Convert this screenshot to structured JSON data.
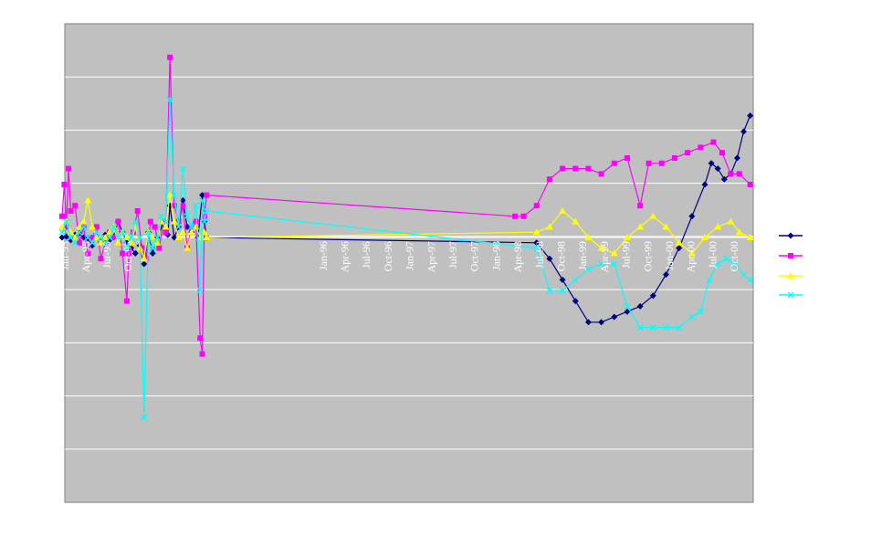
{
  "chart_data": {
    "type": "line",
    "title": "",
    "xlabel": "",
    "ylabel": "",
    "grid": true,
    "legend_position": "right",
    "plot_background": "#c0c0c0",
    "gridline_color": "#ffffff",
    "y_tick_count": 9,
    "x_tick_labels": [
      "Jan-95",
      "Apr-95",
      "Jul-95",
      "Oct-95",
      "Jan-96",
      "Apr-96",
      "Jul-96",
      "Oct-96",
      "Jan-97",
      "Apr-97",
      "Jul-97",
      "Oct-97",
      "Jan-98",
      "Apr-98",
      "Jul-98",
      "Oct-98",
      "Jan-99",
      "Apr-99",
      "Jul-99",
      "Oct-99",
      "Jan-00",
      "Apr-00",
      "Jul-00",
      "Oct-00"
    ],
    "x_tick_label_note": "The left-hand tick labels are crowded and overprinted; labels to the right of Jan-96 are legible.",
    "series": [
      {
        "color": "#000080",
        "marker": "diamond",
        "points": [
          [
            0,
            0.0
          ],
          [
            2,
            0.02
          ],
          [
            4,
            -0.05
          ],
          [
            6,
            0.05
          ],
          [
            8,
            0.08
          ],
          [
            10,
            0.0
          ],
          [
            12,
            -0.02
          ],
          [
            14,
            -0.15
          ],
          [
            16,
            0.05
          ],
          [
            18,
            -0.08
          ],
          [
            20,
            0.05
          ],
          [
            22,
            -0.05
          ],
          [
            24,
            0.02
          ],
          [
            26,
            0.3
          ],
          [
            28,
            0.1
          ],
          [
            30,
            -0.1
          ],
          [
            32,
            -0.2
          ],
          [
            34,
            -0.3
          ],
          [
            36,
            -0.15
          ],
          [
            38,
            -0.5
          ],
          [
            40,
            0.1
          ],
          [
            42,
            -0.3
          ],
          [
            44,
            0.0
          ],
          [
            46,
            0.2
          ],
          [
            48,
            0.15
          ],
          [
            49,
            0.05
          ],
          [
            50,
            0.6
          ],
          [
            52,
            0.0
          ],
          [
            54,
            0.2
          ],
          [
            56,
            0.7
          ],
          [
            58,
            0.2
          ],
          [
            60,
            0.1
          ],
          [
            62,
            0.3
          ],
          [
            63,
            0.0
          ],
          [
            65,
            0.8
          ],
          [
            66,
            0.3
          ],
          [
            67,
            0.0
          ],
          [
            220,
            -0.1
          ],
          [
            226,
            -0.4
          ],
          [
            232,
            -0.8
          ],
          [
            238,
            -1.2
          ],
          [
            244,
            -1.6
          ],
          [
            250,
            -1.6
          ],
          [
            256,
            -1.5
          ],
          [
            262,
            -1.4
          ],
          [
            268,
            -1.3
          ],
          [
            274,
            -1.1
          ],
          [
            280,
            -0.7
          ],
          [
            286,
            -0.2
          ],
          [
            292,
            0.4
          ],
          [
            298,
            1.0
          ],
          [
            301,
            1.4
          ],
          [
            304,
            1.3
          ],
          [
            307,
            1.1
          ],
          [
            310,
            1.2
          ],
          [
            313,
            1.5
          ],
          [
            316,
            2.0
          ],
          [
            319,
            2.3
          ]
        ]
      },
      {
        "color": "#ff00ff",
        "marker": "square",
        "points": [
          [
            0,
            0.4
          ],
          [
            1,
            1.0
          ],
          [
            2,
            0.2
          ],
          [
            3,
            1.3
          ],
          [
            4,
            0.5
          ],
          [
            6,
            0.6
          ],
          [
            8,
            -0.1
          ],
          [
            10,
            0.2
          ],
          [
            12,
            -0.3
          ],
          [
            14,
            0.0
          ],
          [
            16,
            0.2
          ],
          [
            18,
            -0.4
          ],
          [
            20,
            -0.1
          ],
          [
            22,
            0.1
          ],
          [
            24,
            0.0
          ],
          [
            26,
            0.3
          ],
          [
            28,
            -0.3
          ],
          [
            30,
            -1.2
          ],
          [
            31,
            -0.3
          ],
          [
            33,
            0.1
          ],
          [
            35,
            0.5
          ],
          [
            37,
            -0.2
          ],
          [
            39,
            -0.4
          ],
          [
            41,
            0.3
          ],
          [
            43,
            0.2
          ],
          [
            45,
            -0.2
          ],
          [
            47,
            0.3
          ],
          [
            48,
            0.1
          ],
          [
            50,
            3.4
          ],
          [
            52,
            0.6
          ],
          [
            54,
            0.3
          ],
          [
            56,
            0.6
          ],
          [
            58,
            -0.2
          ],
          [
            60,
            0.2
          ],
          [
            62,
            0.3
          ],
          [
            64,
            -1.9
          ],
          [
            65,
            -2.2
          ],
          [
            66,
            0.4
          ],
          [
            67,
            0.8
          ],
          [
            210,
            0.4
          ],
          [
            214,
            0.4
          ],
          [
            220,
            0.6
          ],
          [
            226,
            1.1
          ],
          [
            232,
            1.3
          ],
          [
            238,
            1.3
          ],
          [
            244,
            1.3
          ],
          [
            250,
            1.2
          ],
          [
            256,
            1.4
          ],
          [
            262,
            1.5
          ],
          [
            268,
            0.6
          ],
          [
            272,
            1.4
          ],
          [
            278,
            1.4
          ],
          [
            284,
            1.5
          ],
          [
            290,
            1.6
          ],
          [
            296,
            1.7
          ],
          [
            302,
            1.8
          ],
          [
            306,
            1.6
          ],
          [
            310,
            1.2
          ],
          [
            314,
            1.2
          ],
          [
            319,
            1.0
          ]
        ]
      },
      {
        "color": "#ffff00",
        "marker": "triangle",
        "points": [
          [
            0,
            0.2
          ],
          [
            2,
            0.3
          ],
          [
            4,
            0.1
          ],
          [
            6,
            0.0
          ],
          [
            8,
            0.2
          ],
          [
            10,
            0.3
          ],
          [
            12,
            0.7
          ],
          [
            14,
            0.2
          ],
          [
            16,
            0.0
          ],
          [
            18,
            -0.1
          ],
          [
            20,
            0.0
          ],
          [
            22,
            0.1
          ],
          [
            24,
            0.2
          ],
          [
            26,
            -0.1
          ],
          [
            28,
            0.1
          ],
          [
            30,
            0.0
          ],
          [
            32,
            -0.1
          ],
          [
            34,
            0.2
          ],
          [
            36,
            -0.2
          ],
          [
            38,
            -0.4
          ],
          [
            40,
            0.1
          ],
          [
            42,
            0.0
          ],
          [
            44,
            -0.1
          ],
          [
            46,
            0.3
          ],
          [
            48,
            0.2
          ],
          [
            50,
            0.8
          ],
          [
            52,
            0.3
          ],
          [
            54,
            0.0
          ],
          [
            56,
            0.1
          ],
          [
            58,
            -0.2
          ],
          [
            60,
            0.1
          ],
          [
            62,
            0.2
          ],
          [
            64,
            0.0
          ],
          [
            66,
            0.1
          ],
          [
            67,
            0.0
          ],
          [
            220,
            0.1
          ],
          [
            226,
            0.2
          ],
          [
            232,
            0.5
          ],
          [
            238,
            0.3
          ],
          [
            244,
            0.0
          ],
          [
            250,
            -0.2
          ],
          [
            256,
            -0.3
          ],
          [
            262,
            0.0
          ],
          [
            268,
            0.2
          ],
          [
            274,
            0.4
          ],
          [
            280,
            0.2
          ],
          [
            286,
            -0.1
          ],
          [
            292,
            -0.3
          ],
          [
            298,
            0.0
          ],
          [
            304,
            0.2
          ],
          [
            310,
            0.3
          ],
          [
            314,
            0.1
          ],
          [
            319,
            0.0
          ]
        ]
      },
      {
        "color": "#00ffff",
        "marker": "x",
        "points": [
          [
            0,
            0.1
          ],
          [
            2,
            0.3
          ],
          [
            4,
            0.0
          ],
          [
            6,
            -0.1
          ],
          [
            8,
            0.1
          ],
          [
            10,
            0.2
          ],
          [
            12,
            0.0
          ],
          [
            14,
            -0.1
          ],
          [
            16,
            0.1
          ],
          [
            18,
            0.0
          ],
          [
            20,
            -0.1
          ],
          [
            22,
            0.0
          ],
          [
            24,
            0.2
          ],
          [
            26,
            0.0
          ],
          [
            28,
            0.1
          ],
          [
            30,
            -0.2
          ],
          [
            32,
            0.0
          ],
          [
            34,
            0.3
          ],
          [
            36,
            0.0
          ],
          [
            38,
            -3.4
          ],
          [
            40,
            0.1
          ],
          [
            42,
            -0.2
          ],
          [
            44,
            0.0
          ],
          [
            46,
            0.4
          ],
          [
            48,
            0.3
          ],
          [
            50,
            2.6
          ],
          [
            52,
            0.8
          ],
          [
            54,
            0.2
          ],
          [
            56,
            1.3
          ],
          [
            58,
            0.4
          ],
          [
            60,
            0.2
          ],
          [
            62,
            0.6
          ],
          [
            64,
            -1.0
          ],
          [
            65,
            0.7
          ],
          [
            66,
            0.3
          ],
          [
            67,
            0.5
          ],
          [
            220,
            -0.2
          ],
          [
            226,
            -1.0
          ],
          [
            232,
            -1.0
          ],
          [
            238,
            -0.8
          ],
          [
            244,
            -0.6
          ],
          [
            250,
            -0.5
          ],
          [
            256,
            -0.5
          ],
          [
            262,
            -1.3
          ],
          [
            268,
            -1.7
          ],
          [
            274,
            -1.7
          ],
          [
            280,
            -1.7
          ],
          [
            286,
            -1.7
          ],
          [
            292,
            -1.5
          ],
          [
            296,
            -1.4
          ],
          [
            300,
            -0.8
          ],
          [
            304,
            -0.5
          ],
          [
            308,
            -0.4
          ],
          [
            312,
            -0.5
          ],
          [
            316,
            -0.7
          ],
          [
            319,
            -0.8
          ]
        ]
      }
    ]
  }
}
